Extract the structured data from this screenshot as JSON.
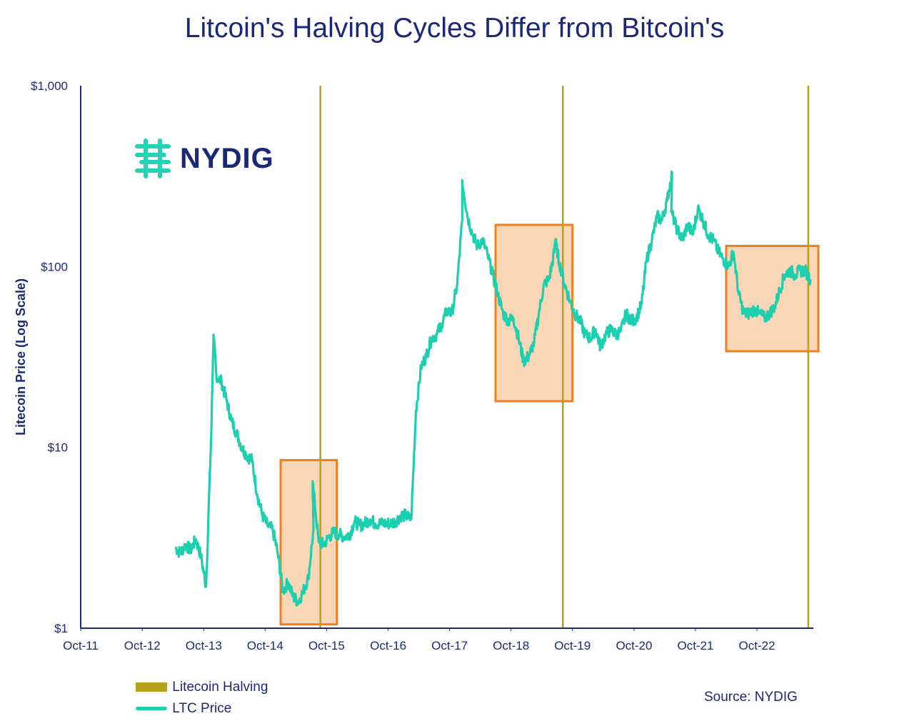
{
  "colors": {
    "title": "#1b2878",
    "axis": "#1b2878",
    "halving": "#b5a11a",
    "price": "#1ccfae",
    "box_fill": "#f8cfa8",
    "box_stroke": "#f07f1f",
    "logo_accent": "#26d2b4"
  },
  "logo": {
    "text": "NYDIG",
    "icon": "nydig-logo-icon"
  },
  "source": "Source: NYDIG",
  "legend": {
    "halving_label": "Litecoin Halving",
    "price_label": "LTC Price"
  },
  "chart_data": {
    "type": "line",
    "title": "Litcoin's Halving Cycles Differ from Bitcoin's",
    "ylabel": "Litecoin Price (Log Scale)",
    "xlabel": "",
    "y_scale": "log",
    "ylim": [
      1,
      1000
    ],
    "xlim": [
      "2011-10",
      "2023-09"
    ],
    "y_ticks": [
      {
        "value": 1,
        "label": "$1"
      },
      {
        "value": 10,
        "label": "$10"
      },
      {
        "value": 100,
        "label": "$100"
      },
      {
        "value": 1000,
        "label": "$1,000"
      }
    ],
    "x_ticks": [
      {
        "value": "2011-10",
        "label": "Oct-11"
      },
      {
        "value": "2012-10",
        "label": "Oct-12"
      },
      {
        "value": "2013-10",
        "label": "Oct-13"
      },
      {
        "value": "2014-10",
        "label": "Oct-14"
      },
      {
        "value": "2015-10",
        "label": "Oct-15"
      },
      {
        "value": "2016-10",
        "label": "Oct-16"
      },
      {
        "value": "2017-10",
        "label": "Oct-17"
      },
      {
        "value": "2018-10",
        "label": "Oct-18"
      },
      {
        "value": "2019-10",
        "label": "Oct-19"
      },
      {
        "value": "2020-10",
        "label": "Oct-20"
      },
      {
        "value": "2021-10",
        "label": "Oct-21"
      },
      {
        "value": "2022-10",
        "label": "Oct-22"
      }
    ],
    "halvings": [
      "2015-08-25",
      "2019-08-05",
      "2023-08-02"
    ],
    "highlight_periods": [
      {
        "start": "2015-01",
        "end": "2015-12",
        "ymin": 1.05,
        "ymax": 8.5
      },
      {
        "start": "2018-07",
        "end": "2019-10",
        "ymin": 18,
        "ymax": 170
      },
      {
        "start": "2022-04",
        "end": "2023-10",
        "ymin": 34,
        "ymax": 130
      }
    ],
    "series": [
      {
        "name": "LTC Price",
        "x": [
          "2013-04",
          "2013-05",
          "2013-06",
          "2013-07",
          "2013-08",
          "2013-09",
          "2013-10",
          "2013-11",
          "2013-11-28",
          "2013-12",
          "2014-01",
          "2014-02",
          "2014-03",
          "2014-04",
          "2014-05",
          "2014-06",
          "2014-07",
          "2014-08",
          "2014-09",
          "2014-10",
          "2014-11",
          "2014-12",
          "2015-01",
          "2015-02",
          "2015-03",
          "2015-04",
          "2015-05",
          "2015-06",
          "2015-07",
          "2015-07-10",
          "2015-08",
          "2015-09",
          "2015-10",
          "2015-11",
          "2015-12",
          "2016-01",
          "2016-02",
          "2016-03",
          "2016-04",
          "2016-05",
          "2016-06",
          "2016-07",
          "2016-08",
          "2016-09",
          "2016-10",
          "2016-11",
          "2016-12",
          "2017-01",
          "2017-02",
          "2017-03",
          "2017-04",
          "2017-05",
          "2017-06",
          "2017-07",
          "2017-08",
          "2017-09",
          "2017-10",
          "2017-11",
          "2017-12",
          "2017-12-15",
          "2018-01",
          "2018-02",
          "2018-03",
          "2018-04",
          "2018-05",
          "2018-06",
          "2018-07",
          "2018-08",
          "2018-09",
          "2018-10",
          "2018-11",
          "2018-12",
          "2019-01",
          "2019-02",
          "2019-03",
          "2019-04",
          "2019-05",
          "2019-06",
          "2019-06-20",
          "2019-07",
          "2019-08",
          "2019-09",
          "2019-10",
          "2019-11",
          "2019-12",
          "2020-01",
          "2020-02",
          "2020-03",
          "2020-04",
          "2020-05",
          "2020-06",
          "2020-07",
          "2020-08",
          "2020-09",
          "2020-10",
          "2020-11",
          "2020-12",
          "2021-01",
          "2021-02",
          "2021-03",
          "2021-04",
          "2021-05",
          "2021-05-10",
          "2021-06",
          "2021-07",
          "2021-08",
          "2021-09",
          "2021-10",
          "2021-11",
          "2021-12",
          "2022-01",
          "2022-02",
          "2022-03",
          "2022-04",
          "2022-05",
          "2022-06",
          "2022-07",
          "2022-08",
          "2022-09",
          "2022-10",
          "2022-11",
          "2022-12",
          "2023-01",
          "2023-02",
          "2023-03",
          "2023-04",
          "2023-05",
          "2023-06",
          "2023-07",
          "2023-08"
        ],
        "values": [
          2.8,
          2.6,
          2.9,
          2.7,
          3.1,
          2.5,
          1.7,
          12,
          42,
          25,
          23,
          18,
          14,
          12,
          10,
          9,
          8.5,
          5.5,
          4.2,
          3.7,
          3.5,
          2.6,
          1.6,
          1.8,
          1.5,
          1.4,
          1.6,
          1.9,
          3.5,
          6.5,
          3.0,
          2.9,
          3.2,
          3.4,
          3.3,
          3.2,
          3.3,
          3.9,
          3.7,
          3.8,
          4.0,
          3.8,
          3.8,
          3.8,
          3.8,
          3.9,
          4.2,
          4.2,
          4.0,
          16,
          28,
          32,
          40,
          42,
          48,
          57,
          55,
          80,
          180,
          300,
          190,
          150,
          130,
          140,
          115,
          90,
          70,
          55,
          50,
          52,
          40,
          30,
          32,
          38,
          55,
          80,
          85,
          120,
          140,
          105,
          80,
          65,
          55,
          50,
          42,
          40,
          45,
          36,
          42,
          45,
          42,
          44,
          55,
          50,
          52,
          62,
          110,
          140,
          190,
          180,
          230,
          330,
          200,
          160,
          140,
          170,
          150,
          210,
          180,
          150,
          140,
          120,
          110,
          100,
          120,
          70,
          55,
          55,
          58,
          55,
          52,
          55,
          60,
          75,
          90,
          95,
          90,
          95,
          95,
          85
        ]
      }
    ]
  }
}
